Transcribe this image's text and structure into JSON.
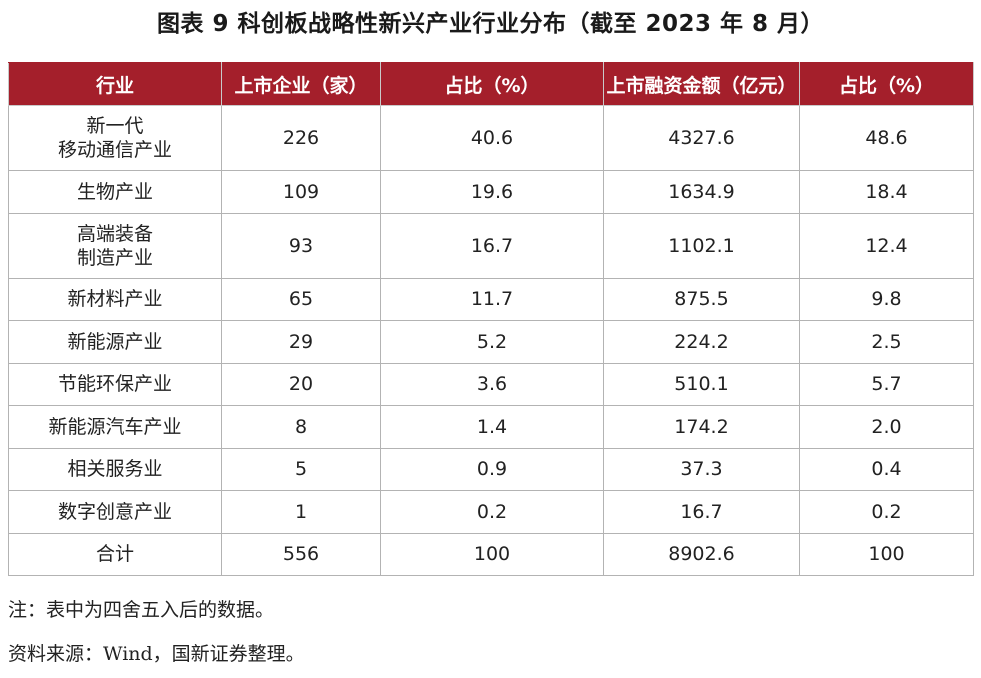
{
  "title": "图表 9  科创板战略性新兴产业行业分布（截至 2023 年 8 月）",
  "table": {
    "headers": [
      "行业",
      "上市企业（家）",
      "占比（%）",
      "上市融资金额（亿元）",
      "占比（%）"
    ],
    "rows": [
      {
        "industry_line1": "新一代",
        "industry_line2": "移动通信产业",
        "companies": "226",
        "company_share": "40.6",
        "financing": "4327.6",
        "financing_share": "48.6"
      },
      {
        "industry_line1": "生物产业",
        "industry_line2": "",
        "companies": "109",
        "company_share": "19.6",
        "financing": "1634.9",
        "financing_share": "18.4"
      },
      {
        "industry_line1": "高端装备",
        "industry_line2": "制造产业",
        "companies": "93",
        "company_share": "16.7",
        "financing": "1102.1",
        "financing_share": "12.4"
      },
      {
        "industry_line1": "新材料产业",
        "industry_line2": "",
        "companies": "65",
        "company_share": "11.7",
        "financing": "875.5",
        "financing_share": "9.8"
      },
      {
        "industry_line1": "新能源产业",
        "industry_line2": "",
        "companies": "29",
        "company_share": "5.2",
        "financing": "224.2",
        "financing_share": "2.5"
      },
      {
        "industry_line1": "节能环保产业",
        "industry_line2": "",
        "companies": "20",
        "company_share": "3.6",
        "financing": "510.1",
        "financing_share": "5.7"
      },
      {
        "industry_line1": "新能源汽车产业",
        "industry_line2": "",
        "companies": "8",
        "company_share": "1.4",
        "financing": "174.2",
        "financing_share": "2.0"
      },
      {
        "industry_line1": "相关服务业",
        "industry_line2": "",
        "companies": "5",
        "company_share": "0.9",
        "financing": "37.3",
        "financing_share": "0.4"
      },
      {
        "industry_line1": "数字创意产业",
        "industry_line2": "",
        "companies": "1",
        "company_share": "0.2",
        "financing": "16.7",
        "financing_share": "0.2"
      },
      {
        "industry_line1": "合计",
        "industry_line2": "",
        "companies": "556",
        "company_share": "100",
        "financing": "8902.6",
        "financing_share": "100"
      }
    ]
  },
  "notes": {
    "note": "注：表中为四舍五入后的数据。",
    "source": "资料来源：Wind，国新证券整理。"
  },
  "colors": {
    "header_background": "#a41f2b",
    "header_text": "#ffffff",
    "border": "#b3b3b3"
  }
}
